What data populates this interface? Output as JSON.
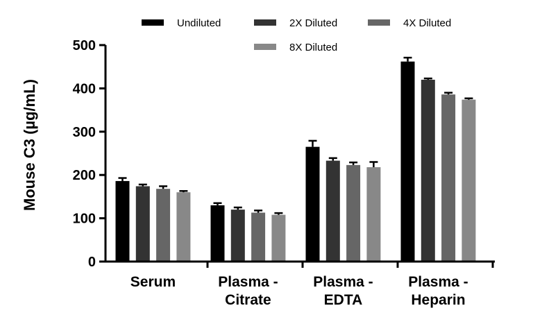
{
  "chart_data": {
    "type": "bar",
    "title": "",
    "ylabel": "Mouse C3 (µg/mL)",
    "xlabel": "",
    "ylim": [
      0,
      500
    ],
    "yticks": [
      0,
      100,
      200,
      300,
      400,
      500
    ],
    "categories": [
      [
        "Serum"
      ],
      [
        "Plasma -",
        "Citrate"
      ],
      [
        "Plasma -",
        "EDTA"
      ],
      [
        "Plasma -",
        "Heparin"
      ]
    ],
    "series": [
      {
        "name": "Undiluted",
        "color": "#000000",
        "values": [
          186,
          130,
          265,
          462
        ],
        "errors": [
          7,
          5,
          14,
          9
        ]
      },
      {
        "name": "2X Diluted",
        "color": "#333333",
        "values": [
          174,
          120,
          233,
          420
        ],
        "errors": [
          4,
          5,
          6,
          3
        ]
      },
      {
        "name": "4X Diluted",
        "color": "#666666",
        "values": [
          168,
          113,
          223,
          386
        ],
        "errors": [
          6,
          5,
          6,
          4
        ]
      },
      {
        "name": "8X Diluted",
        "color": "#888888",
        "values": [
          160,
          108,
          218,
          374
        ],
        "errors": [
          3,
          4,
          12,
          3
        ]
      }
    ],
    "legend_position": "top"
  }
}
